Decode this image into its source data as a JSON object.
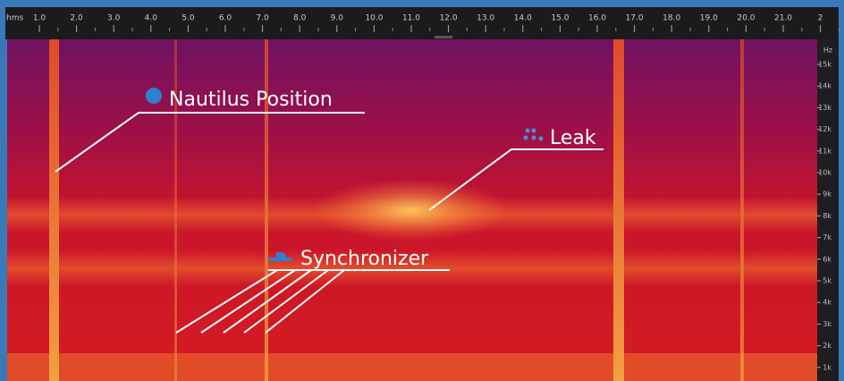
{
  "ruler": {
    "unit": "hms",
    "labels": [
      "1.0",
      "2.0",
      "3.0",
      "4.0",
      "5.0",
      "6.0",
      "7.0",
      "8.0",
      "9.0",
      "10.0",
      "11.0",
      "12.0",
      "13.0",
      "14.0",
      "15.0",
      "16.0",
      "17.0",
      "18.0",
      "19.0",
      "20.0",
      "21.0",
      "2"
    ]
  },
  "freq_axis": {
    "unit": "Hz",
    "labels": [
      "15k",
      "14k",
      "13k",
      "12k",
      "11k",
      "10k",
      "9k",
      "8k",
      "7k",
      "6k",
      "5k",
      "4k",
      "3k",
      "2k",
      "1k"
    ]
  },
  "annotations": [
    {
      "label": "Nautilus Position"
    },
    {
      "label": "Leak"
    },
    {
      "label": "Synchronizer"
    }
  ]
}
